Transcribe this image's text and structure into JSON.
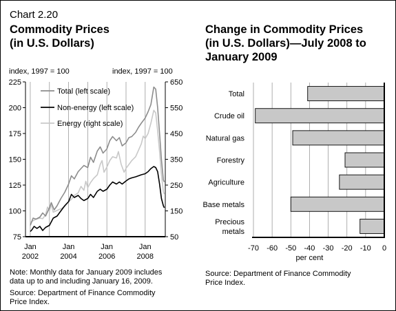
{
  "header": {
    "chart_number": "Chart 2.20",
    "left_title": [
      "Commodity Prices",
      "(in U.S. Dollars)"
    ],
    "right_title": [
      "Change in Commodity Prices",
      "(in U.S. Dollars)—July 2008 to",
      "January 2009"
    ]
  },
  "left_notes": {
    "note": [
      "Note: Monthly data for January 2009 includes",
      "data up to and including January 16, 2009."
    ],
    "source": [
      "Source: Department of Finance Commodity",
      "Price Index."
    ]
  },
  "right_notes": {
    "source": [
      "Source: Department of Finance Commodity",
      "Price Index."
    ]
  },
  "colors": {
    "total": "#8c8c8c",
    "non_energy": "#000000",
    "energy": "#c8c8c8",
    "bar_fill": "#c8c8c8",
    "grid": "#9a9a9a"
  },
  "chart_data": [
    {
      "type": "line",
      "title": "Commodity Prices (in U.S. Dollars)",
      "left_axis_label": "index, 1997 = 100",
      "right_axis_label": "index, 1997 = 100",
      "y_left": {
        "min": 75,
        "max": 225,
        "ticks": [
          75,
          100,
          125,
          150,
          175,
          200,
          225
        ]
      },
      "y_right": {
        "min": 50,
        "max": 650,
        "ticks": [
          50,
          150,
          250,
          350,
          450,
          550,
          650
        ]
      },
      "x_range": [
        2001.75,
        2009.05
      ],
      "x_ticks": [
        {
          "x": 2002,
          "line1": "Jan",
          "line2": "2002"
        },
        {
          "x": 2003,
          "line1": "",
          "line2": ""
        },
        {
          "x": 2004,
          "line1": "Jan",
          "line2": "2004"
        },
        {
          "x": 2005,
          "line1": "",
          "line2": ""
        },
        {
          "x": 2006,
          "line1": "Jan",
          "line2": "2006"
        },
        {
          "x": 2007,
          "line1": "",
          "line2": ""
        },
        {
          "x": 2008,
          "line1": "Jan",
          "line2": "2008"
        }
      ],
      "legend_placement": "top-left",
      "grid": "vertical",
      "series": [
        {
          "name": "Total (left scale)",
          "axis": "left",
          "points": [
            [
              2002.0,
              86
            ],
            [
              2002.15,
              93
            ],
            [
              2002.3,
              92
            ],
            [
              2002.5,
              94
            ],
            [
              2002.65,
              98
            ],
            [
              2002.8,
              95
            ],
            [
              2003.0,
              103
            ],
            [
              2003.1,
              108
            ],
            [
              2003.25,
              101
            ],
            [
              2003.4,
              105
            ],
            [
              2003.6,
              112
            ],
            [
              2003.8,
              118
            ],
            [
              2004.0,
              126
            ],
            [
              2004.15,
              134
            ],
            [
              2004.3,
              131
            ],
            [
              2004.5,
              138
            ],
            [
              2004.65,
              141
            ],
            [
              2004.8,
              144
            ],
            [
              2005.0,
              142
            ],
            [
              2005.15,
              152
            ],
            [
              2005.3,
              147
            ],
            [
              2005.5,
              158
            ],
            [
              2005.65,
              162
            ],
            [
              2005.8,
              156
            ],
            [
              2006.0,
              160
            ],
            [
              2006.15,
              168
            ],
            [
              2006.3,
              172
            ],
            [
              2006.5,
              168
            ],
            [
              2006.65,
              171
            ],
            [
              2006.8,
              163
            ],
            [
              2007.0,
              166
            ],
            [
              2007.15,
              171
            ],
            [
              2007.3,
              172
            ],
            [
              2007.5,
              176
            ],
            [
              2007.65,
              181
            ],
            [
              2007.8,
              185
            ],
            [
              2008.0,
              190
            ],
            [
              2008.15,
              196
            ],
            [
              2008.3,
              203
            ],
            [
              2008.45,
              220
            ],
            [
              2008.55,
              218
            ],
            [
              2008.65,
              200
            ],
            [
              2008.75,
              175
            ],
            [
              2008.85,
              150
            ],
            [
              2008.95,
              130
            ],
            [
              2009.0,
              128
            ]
          ]
        },
        {
          "name": "Non-energy (left scale)",
          "axis": "left",
          "points": [
            [
              2002.0,
              80
            ],
            [
              2002.1,
              82
            ],
            [
              2002.2,
              85
            ],
            [
              2002.35,
              83
            ],
            [
              2002.5,
              85
            ],
            [
              2002.65,
              81
            ],
            [
              2002.8,
              84
            ],
            [
              2003.0,
              86
            ],
            [
              2003.2,
              93
            ],
            [
              2003.4,
              95
            ],
            [
              2003.6,
              100
            ],
            [
              2003.8,
              105
            ],
            [
              2004.0,
              109
            ],
            [
              2004.15,
              116
            ],
            [
              2004.3,
              113
            ],
            [
              2004.5,
              115
            ],
            [
              2004.65,
              112
            ],
            [
              2004.8,
              110
            ],
            [
              2005.0,
              112
            ],
            [
              2005.15,
              116
            ],
            [
              2005.3,
              113
            ],
            [
              2005.5,
              119
            ],
            [
              2005.65,
              121
            ],
            [
              2005.8,
              119
            ],
            [
              2006.0,
              121
            ],
            [
              2006.15,
              125
            ],
            [
              2006.3,
              128
            ],
            [
              2006.5,
              126
            ],
            [
              2006.65,
              128
            ],
            [
              2006.8,
              126
            ],
            [
              2007.0,
              129
            ],
            [
              2007.15,
              131
            ],
            [
              2007.3,
              132
            ],
            [
              2007.5,
              133
            ],
            [
              2007.65,
              134
            ],
            [
              2007.8,
              135
            ],
            [
              2008.0,
              136
            ],
            [
              2008.15,
              138
            ],
            [
              2008.3,
              141
            ],
            [
              2008.45,
              143
            ],
            [
              2008.55,
              142
            ],
            [
              2008.65,
              138
            ],
            [
              2008.75,
              126
            ],
            [
              2008.85,
              112
            ],
            [
              2008.95,
              105
            ],
            [
              2009.0,
              103
            ]
          ]
        },
        {
          "name": "Energy (right scale)",
          "axis": "right",
          "points": [
            [
              2002.0,
              105
            ],
            [
              2002.15,
              112
            ],
            [
              2002.3,
              118
            ],
            [
              2002.5,
              122
            ],
            [
              2002.65,
              120
            ],
            [
              2002.8,
              135
            ],
            [
              2002.9,
              165
            ],
            [
              2003.0,
              150
            ],
            [
              2003.1,
              175
            ],
            [
              2003.2,
              145
            ],
            [
              2003.35,
              150
            ],
            [
              2003.5,
              155
            ],
            [
              2003.65,
              160
            ],
            [
              2003.8,
              168
            ],
            [
              2004.0,
              185
            ],
            [
              2004.15,
              195
            ],
            [
              2004.3,
              210
            ],
            [
              2004.5,
              220
            ],
            [
              2004.65,
              245
            ],
            [
              2004.8,
              230
            ],
            [
              2004.9,
              265
            ],
            [
              2005.0,
              240
            ],
            [
              2005.15,
              260
            ],
            [
              2005.3,
              275
            ],
            [
              2005.5,
              290
            ],
            [
              2005.65,
              330
            ],
            [
              2005.75,
              345
            ],
            [
              2005.85,
              300
            ],
            [
              2006.0,
              320
            ],
            [
              2006.15,
              345
            ],
            [
              2006.3,
              360
            ],
            [
              2006.5,
              355
            ],
            [
              2006.6,
              380
            ],
            [
              2006.75,
              330
            ],
            [
              2006.9,
              300
            ],
            [
              2007.0,
              315
            ],
            [
              2007.15,
              330
            ],
            [
              2007.3,
              345
            ],
            [
              2007.5,
              360
            ],
            [
              2007.65,
              385
            ],
            [
              2007.8,
              410
            ],
            [
              2007.9,
              440
            ],
            [
              2008.0,
              430
            ],
            [
              2008.15,
              450
            ],
            [
              2008.3,
              490
            ],
            [
              2008.45,
              540
            ],
            [
              2008.55,
              530
            ],
            [
              2008.65,
              460
            ],
            [
              2008.75,
              380
            ],
            [
              2008.85,
              290
            ],
            [
              2008.95,
              225
            ],
            [
              2009.0,
              215
            ]
          ]
        }
      ]
    },
    {
      "type": "bar",
      "title": "Change in Commodity Prices (in U.S. Dollars)—July 2008 to January 2009",
      "orientation": "horizontal",
      "categories": [
        [
          "Total"
        ],
        [
          "Crude oil"
        ],
        [
          "Natural gas"
        ],
        [
          "Forestry"
        ],
        [
          "Agriculture"
        ],
        [
          "Base metals"
        ],
        [
          "Precious",
          "metals"
        ]
      ],
      "values": [
        -41,
        -69,
        -49,
        -21,
        -24,
        -50,
        -13
      ],
      "xlabel": "per cent",
      "xlim": [
        -70,
        0
      ],
      "x_ticks": [
        -70,
        -60,
        -50,
        -40,
        -30,
        -20,
        -10,
        0
      ],
      "grid": "vertical"
    }
  ]
}
